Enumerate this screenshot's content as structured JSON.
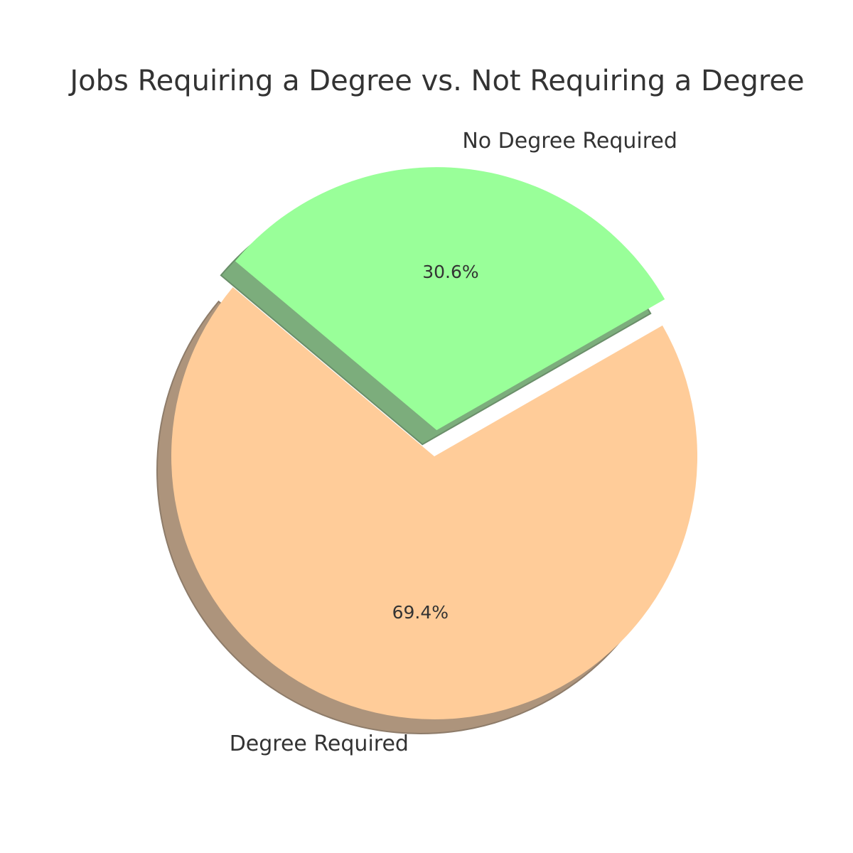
{
  "chart_data": {
    "type": "pie",
    "title": "Jobs Requiring a Degree vs. Not Requiring a Degree",
    "slices": [
      {
        "label": "Degree Required",
        "value": 69.4,
        "pct_label": "69.4%",
        "color": "#ffcc99",
        "exploded": false
      },
      {
        "label": "No Degree Required",
        "value": 30.6,
        "pct_label": "30.6%",
        "color": "#99ff99",
        "exploded": true
      }
    ],
    "shadow": true,
    "start_angle_deg": 140,
    "direction": "counterclockwise",
    "legend": "none"
  }
}
